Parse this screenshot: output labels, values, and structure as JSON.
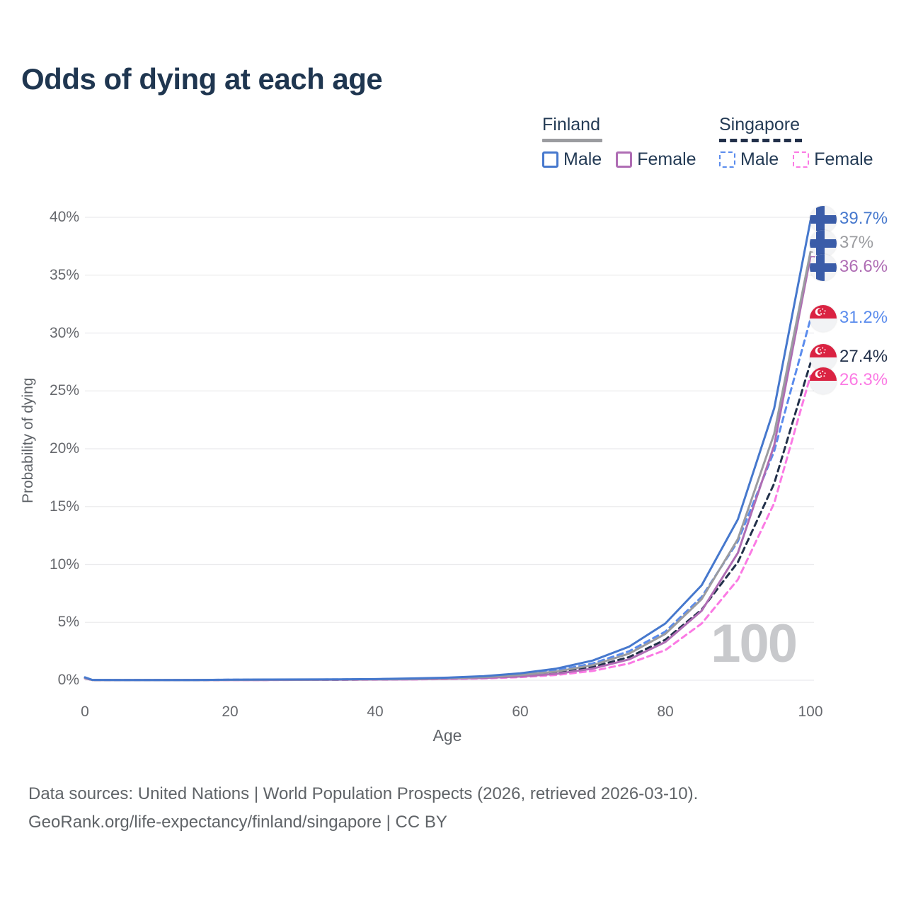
{
  "chart_data": {
    "type": "line",
    "title": "Odds of dying at each age",
    "xlabel": "Age",
    "ylabel": "Probability of dying",
    "xlim": [
      0,
      100
    ],
    "ylim": [
      0,
      40
    ],
    "grid": "horizontal-only",
    "x_ticks": {
      "values": [
        0,
        20,
        40,
        60,
        80,
        100
      ],
      "labels": [
        "0",
        "20",
        "40",
        "60",
        "80",
        "100"
      ]
    },
    "y_ticks": {
      "values": [
        0,
        5,
        10,
        15,
        20,
        25,
        30,
        35,
        40
      ],
      "labels": [
        "0%",
        "5%",
        "10%",
        "15%",
        "20%",
        "25%",
        "30%",
        "35%",
        "40%"
      ]
    },
    "age_marker": "100",
    "x": [
      0,
      1,
      5,
      10,
      15,
      20,
      25,
      30,
      35,
      40,
      45,
      50,
      55,
      60,
      65,
      70,
      75,
      80,
      85,
      90,
      95,
      100
    ],
    "series": [
      {
        "name": "Finland Male",
        "country": "finland",
        "flag_icon": "finland-flag-icon",
        "color": "#4678cd",
        "dashed": false,
        "end_label": "39.7%",
        "end_value": 39.7,
        "values": [
          0.25,
          0.03,
          0.01,
          0.01,
          0.02,
          0.05,
          0.06,
          0.07,
          0.08,
          0.1,
          0.15,
          0.22,
          0.35,
          0.6,
          1.0,
          1.7,
          2.9,
          4.9,
          8.2,
          13.9,
          23.5,
          39.7
        ]
      },
      {
        "name": "Finland (both sexes)",
        "country": "finland",
        "flag_icon": "finland-flag-icon",
        "color": "#9b9ca0",
        "dashed": false,
        "end_label": "37%",
        "end_value": 37.0,
        "values": [
          0.2,
          0.02,
          0.01,
          0.01,
          0.02,
          0.03,
          0.04,
          0.05,
          0.06,
          0.08,
          0.11,
          0.17,
          0.27,
          0.45,
          0.75,
          1.3,
          2.3,
          4.0,
          7.0,
          12.2,
          21.3,
          37.0
        ]
      },
      {
        "name": "Finland Female",
        "country": "finland",
        "flag_icon": "finland-flag-icon",
        "color": "#af6db4",
        "dashed": false,
        "end_label": "36.6%",
        "end_value": 36.6,
        "values": [
          0.18,
          0.02,
          0.01,
          0.01,
          0.01,
          0.02,
          0.02,
          0.03,
          0.04,
          0.06,
          0.08,
          0.12,
          0.2,
          0.32,
          0.55,
          1.0,
          1.8,
          3.3,
          6.0,
          11.0,
          20.3,
          36.6
        ]
      },
      {
        "name": "Singapore Male",
        "country": "singapore",
        "flag_icon": "singapore-flag-icon",
        "color": "#5b8ced",
        "dashed": true,
        "end_label": "31.2%",
        "end_value": 31.2,
        "values": [
          0.2,
          0.02,
          0.01,
          0.01,
          0.02,
          0.04,
          0.05,
          0.06,
          0.07,
          0.09,
          0.13,
          0.19,
          0.3,
          0.5,
          0.85,
          1.45,
          2.5,
          4.2,
          7.2,
          12.0,
          19.8,
          31.2
        ]
      },
      {
        "name": "Singapore (both sexes)",
        "country": "singapore",
        "flag_icon": "singapore-flag-icon",
        "color": "#22304a",
        "dashed": true,
        "end_label": "27.4%",
        "end_value": 27.4,
        "values": [
          0.18,
          0.02,
          0.01,
          0.01,
          0.01,
          0.03,
          0.03,
          0.04,
          0.05,
          0.07,
          0.1,
          0.15,
          0.24,
          0.4,
          0.65,
          1.15,
          2.0,
          3.5,
          6.1,
          10.2,
          17.0,
          27.4
        ]
      },
      {
        "name": "Singapore Female",
        "country": "singapore",
        "flag_icon": "singapore-flag-icon",
        "color": "#fb7ae4",
        "dashed": true,
        "end_label": "26.3%",
        "end_value": 26.3,
        "values": [
          0.16,
          0.02,
          0.005,
          0.005,
          0.01,
          0.02,
          0.02,
          0.03,
          0.03,
          0.05,
          0.07,
          0.1,
          0.16,
          0.26,
          0.45,
          0.8,
          1.45,
          2.6,
          4.9,
          8.7,
          15.3,
          26.3
        ]
      }
    ]
  },
  "legend": {
    "groups": [
      {
        "label": "Finland",
        "line_style": "solid",
        "underline_color": "#9b9ca0",
        "items": [
          {
            "label": "Male",
            "color": "#4678cd",
            "dashed": false
          },
          {
            "label": "Female",
            "color": "#af6db4",
            "dashed": false
          }
        ]
      },
      {
        "label": "Singapore",
        "line_style": "dashed",
        "underline_color": "#22304a",
        "items": [
          {
            "label": "Male",
            "color": "#5b8ced",
            "dashed": true
          },
          {
            "label": "Female",
            "color": "#fb7ae4",
            "dashed": true
          }
        ]
      }
    ]
  },
  "colors": {
    "title_text": "#1f3650",
    "legend_text": "#243b55",
    "tick_text": "#67696e",
    "axis_title_text": "#5f6368",
    "gridline": "#ebebed",
    "watermark": "#c8c9cc",
    "footer_text": "#606468",
    "finland_flag_blue": "#3a5ca8",
    "singapore_flag_red": "#da2342",
    "flag_white": "#f2f3f5"
  },
  "footer": {
    "line1": "Data sources: United Nations | World Population Prospects (2026, retrieved 2026-03-10).",
    "line2": "GeoRank.org/life-expectancy/finland/singapore | CC BY"
  }
}
